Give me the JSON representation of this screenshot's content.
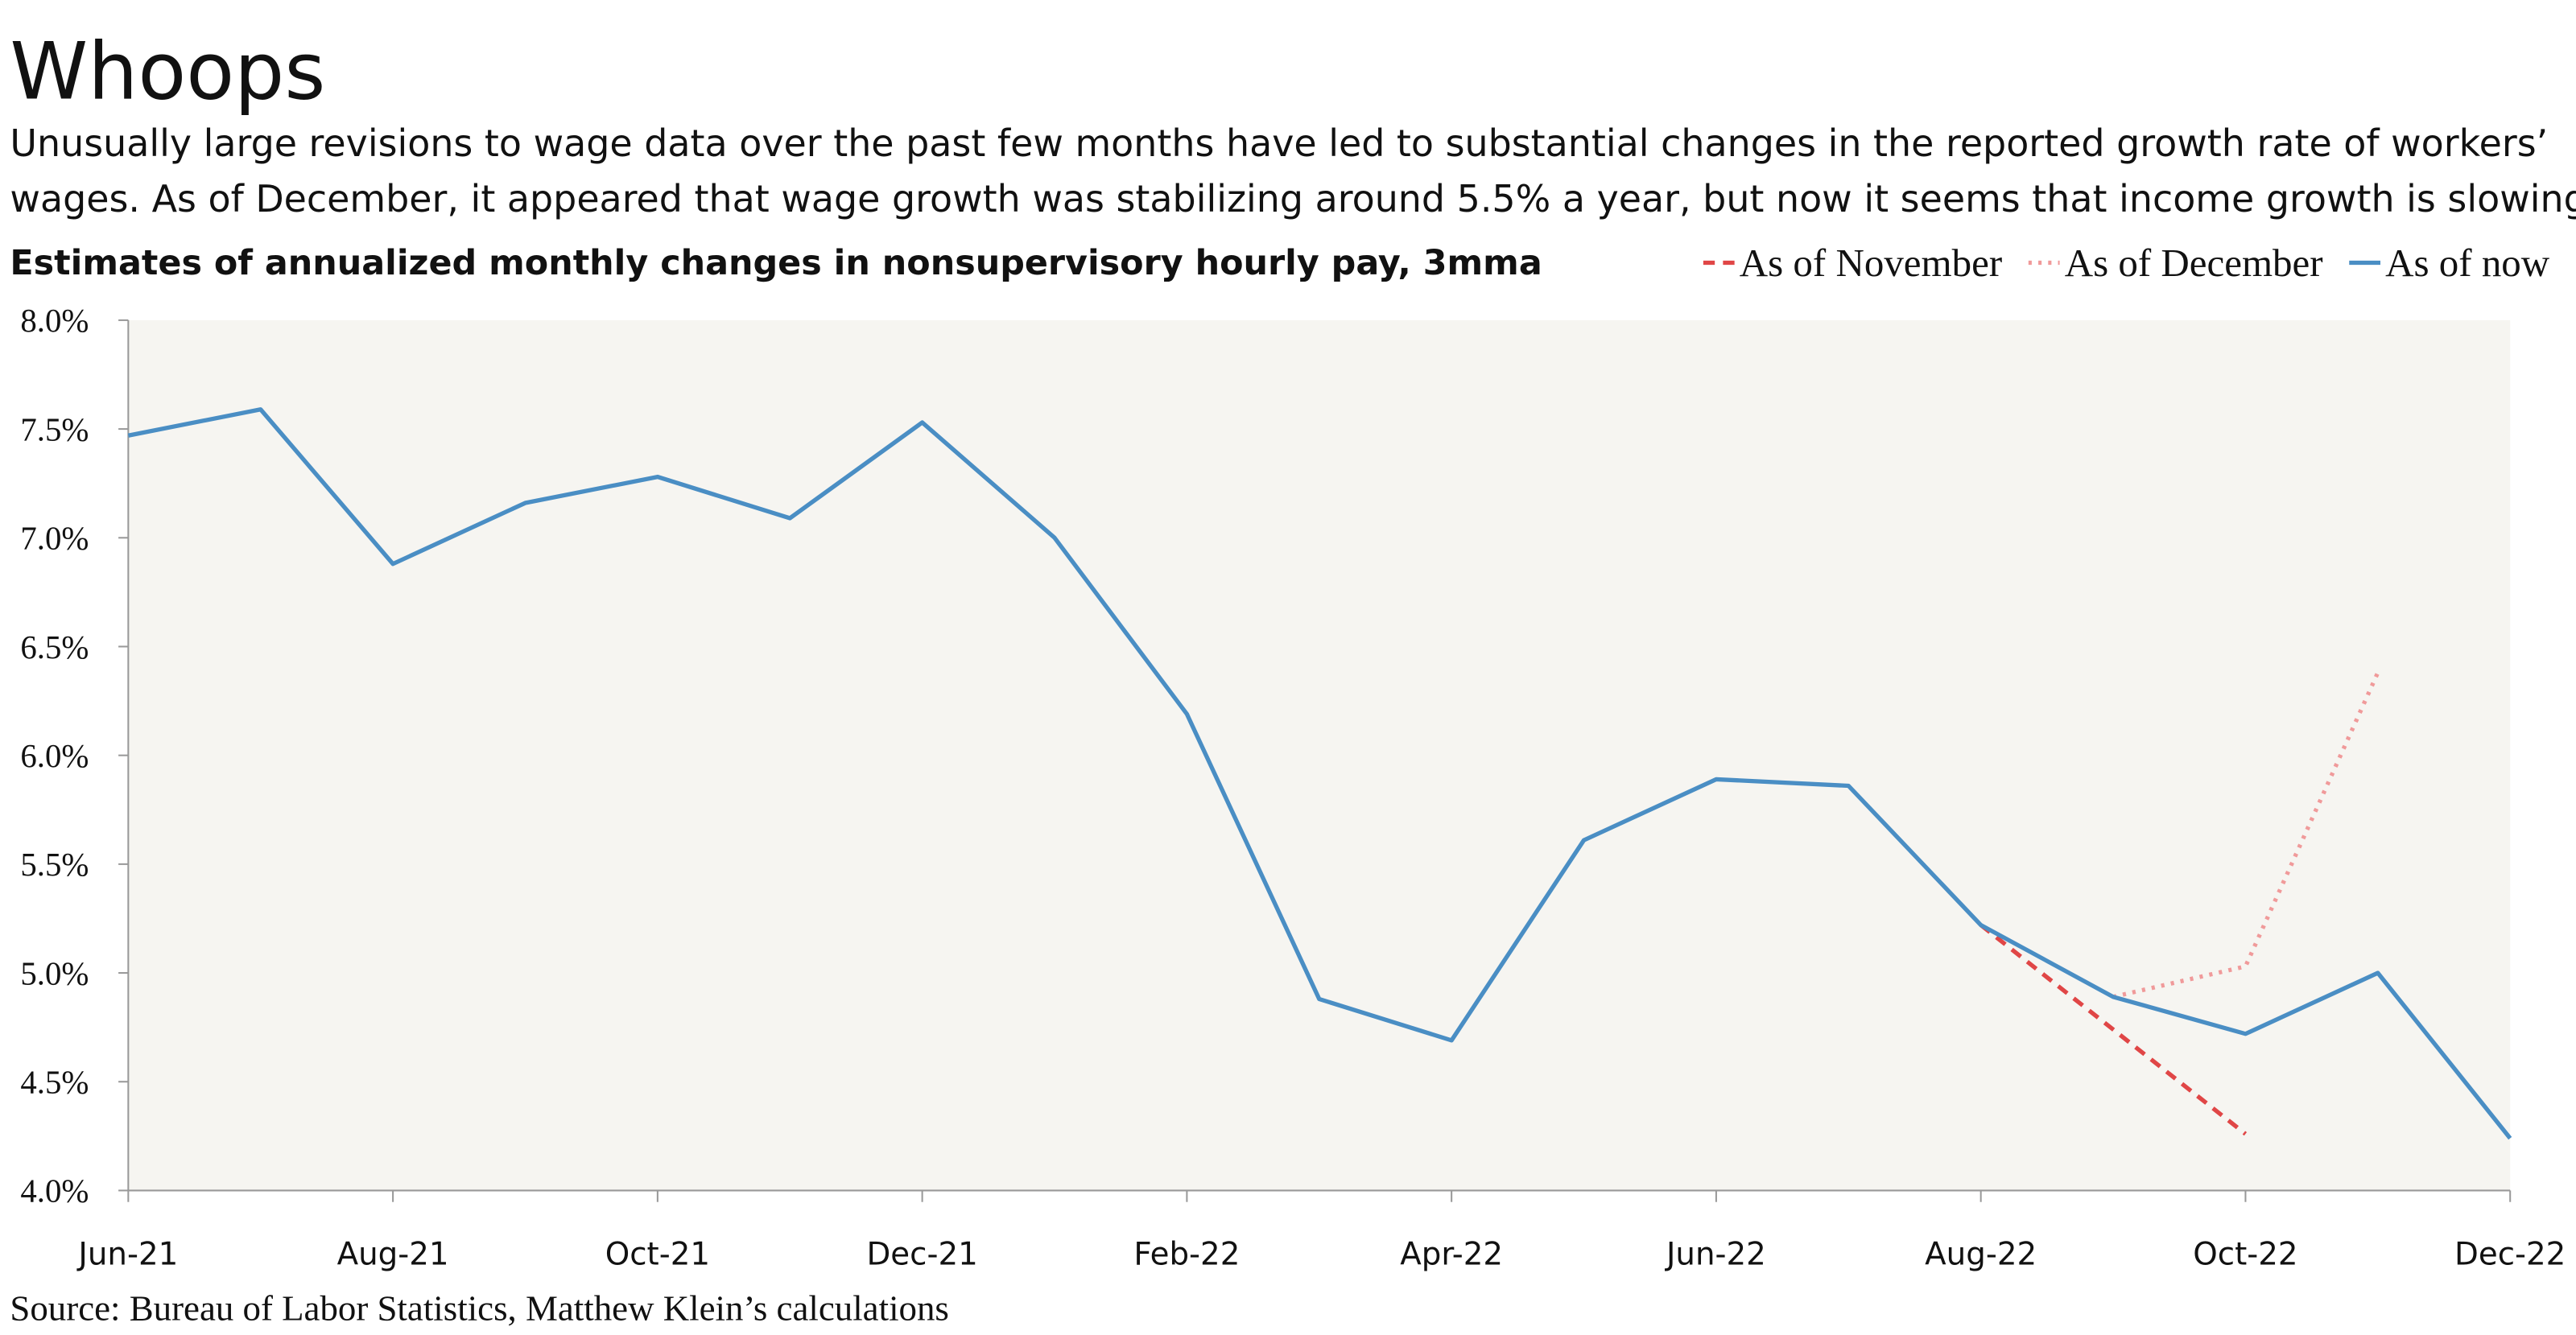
{
  "chart_data": {
    "type": "line",
    "title": "Whoops",
    "subtitle": [
      "Unusually large revisions to wage data over the past few months have led to substantial changes in the reported growth rate of workers’",
      "wages. As of December, it appeared that wage growth was stabilizing around 5.5% a year, but now it seems that income growth is slowing."
    ],
    "heading": "Estimates of annualized monthly changes in nonsupervisory hourly pay, 3mma",
    "source": "Source: Bureau of Labor Statistics, Matthew Klein’s calculations",
    "categories": [
      "Jun-21",
      null,
      "Aug-21",
      null,
      "Oct-21",
      null,
      "Dec-21",
      null,
      "Feb-22",
      null,
      "Apr-22",
      null,
      "Jun-22",
      null,
      "Aug-22",
      null,
      "Oct-22",
      null,
      "Dec-22"
    ],
    "series": [
      {
        "name": "As of November",
        "color": "#e04646",
        "dash": "dashed",
        "values": [
          null,
          null,
          null,
          null,
          null,
          null,
          null,
          null,
          null,
          null,
          null,
          null,
          null,
          null,
          5.22,
          4.74,
          4.26,
          null,
          null
        ]
      },
      {
        "name": "As of December",
        "color": "#f09a9a",
        "dash": "dotted",
        "values": [
          null,
          null,
          null,
          null,
          null,
          null,
          null,
          null,
          null,
          null,
          null,
          null,
          null,
          null,
          null,
          4.89,
          5.03,
          6.38,
          null
        ]
      },
      {
        "name": "As of now",
        "color": "#4a8ec4",
        "dash": "solid",
        "values": [
          7.47,
          7.59,
          6.88,
          7.16,
          7.28,
          7.09,
          7.53,
          7.0,
          6.19,
          4.88,
          4.69,
          5.61,
          5.89,
          5.86,
          5.22,
          4.89,
          4.72,
          5.0,
          4.24
        ]
      }
    ],
    "ylim": [
      4,
      8
    ],
    "yticks": [
      {
        "value": 4,
        "label": "4.0%"
      },
      {
        "value": 4.5,
        "label": "4.5%"
      },
      {
        "value": 5,
        "label": "5.0%"
      },
      {
        "value": 5.5,
        "label": "5.5%"
      },
      {
        "value": 6,
        "label": "6.0%"
      },
      {
        "value": 6.5,
        "label": "6.5%"
      },
      {
        "value": 7,
        "label": "7.0%"
      },
      {
        "value": 7.5,
        "label": "7.5%"
      },
      {
        "value": 8,
        "label": "8.0%"
      }
    ]
  }
}
